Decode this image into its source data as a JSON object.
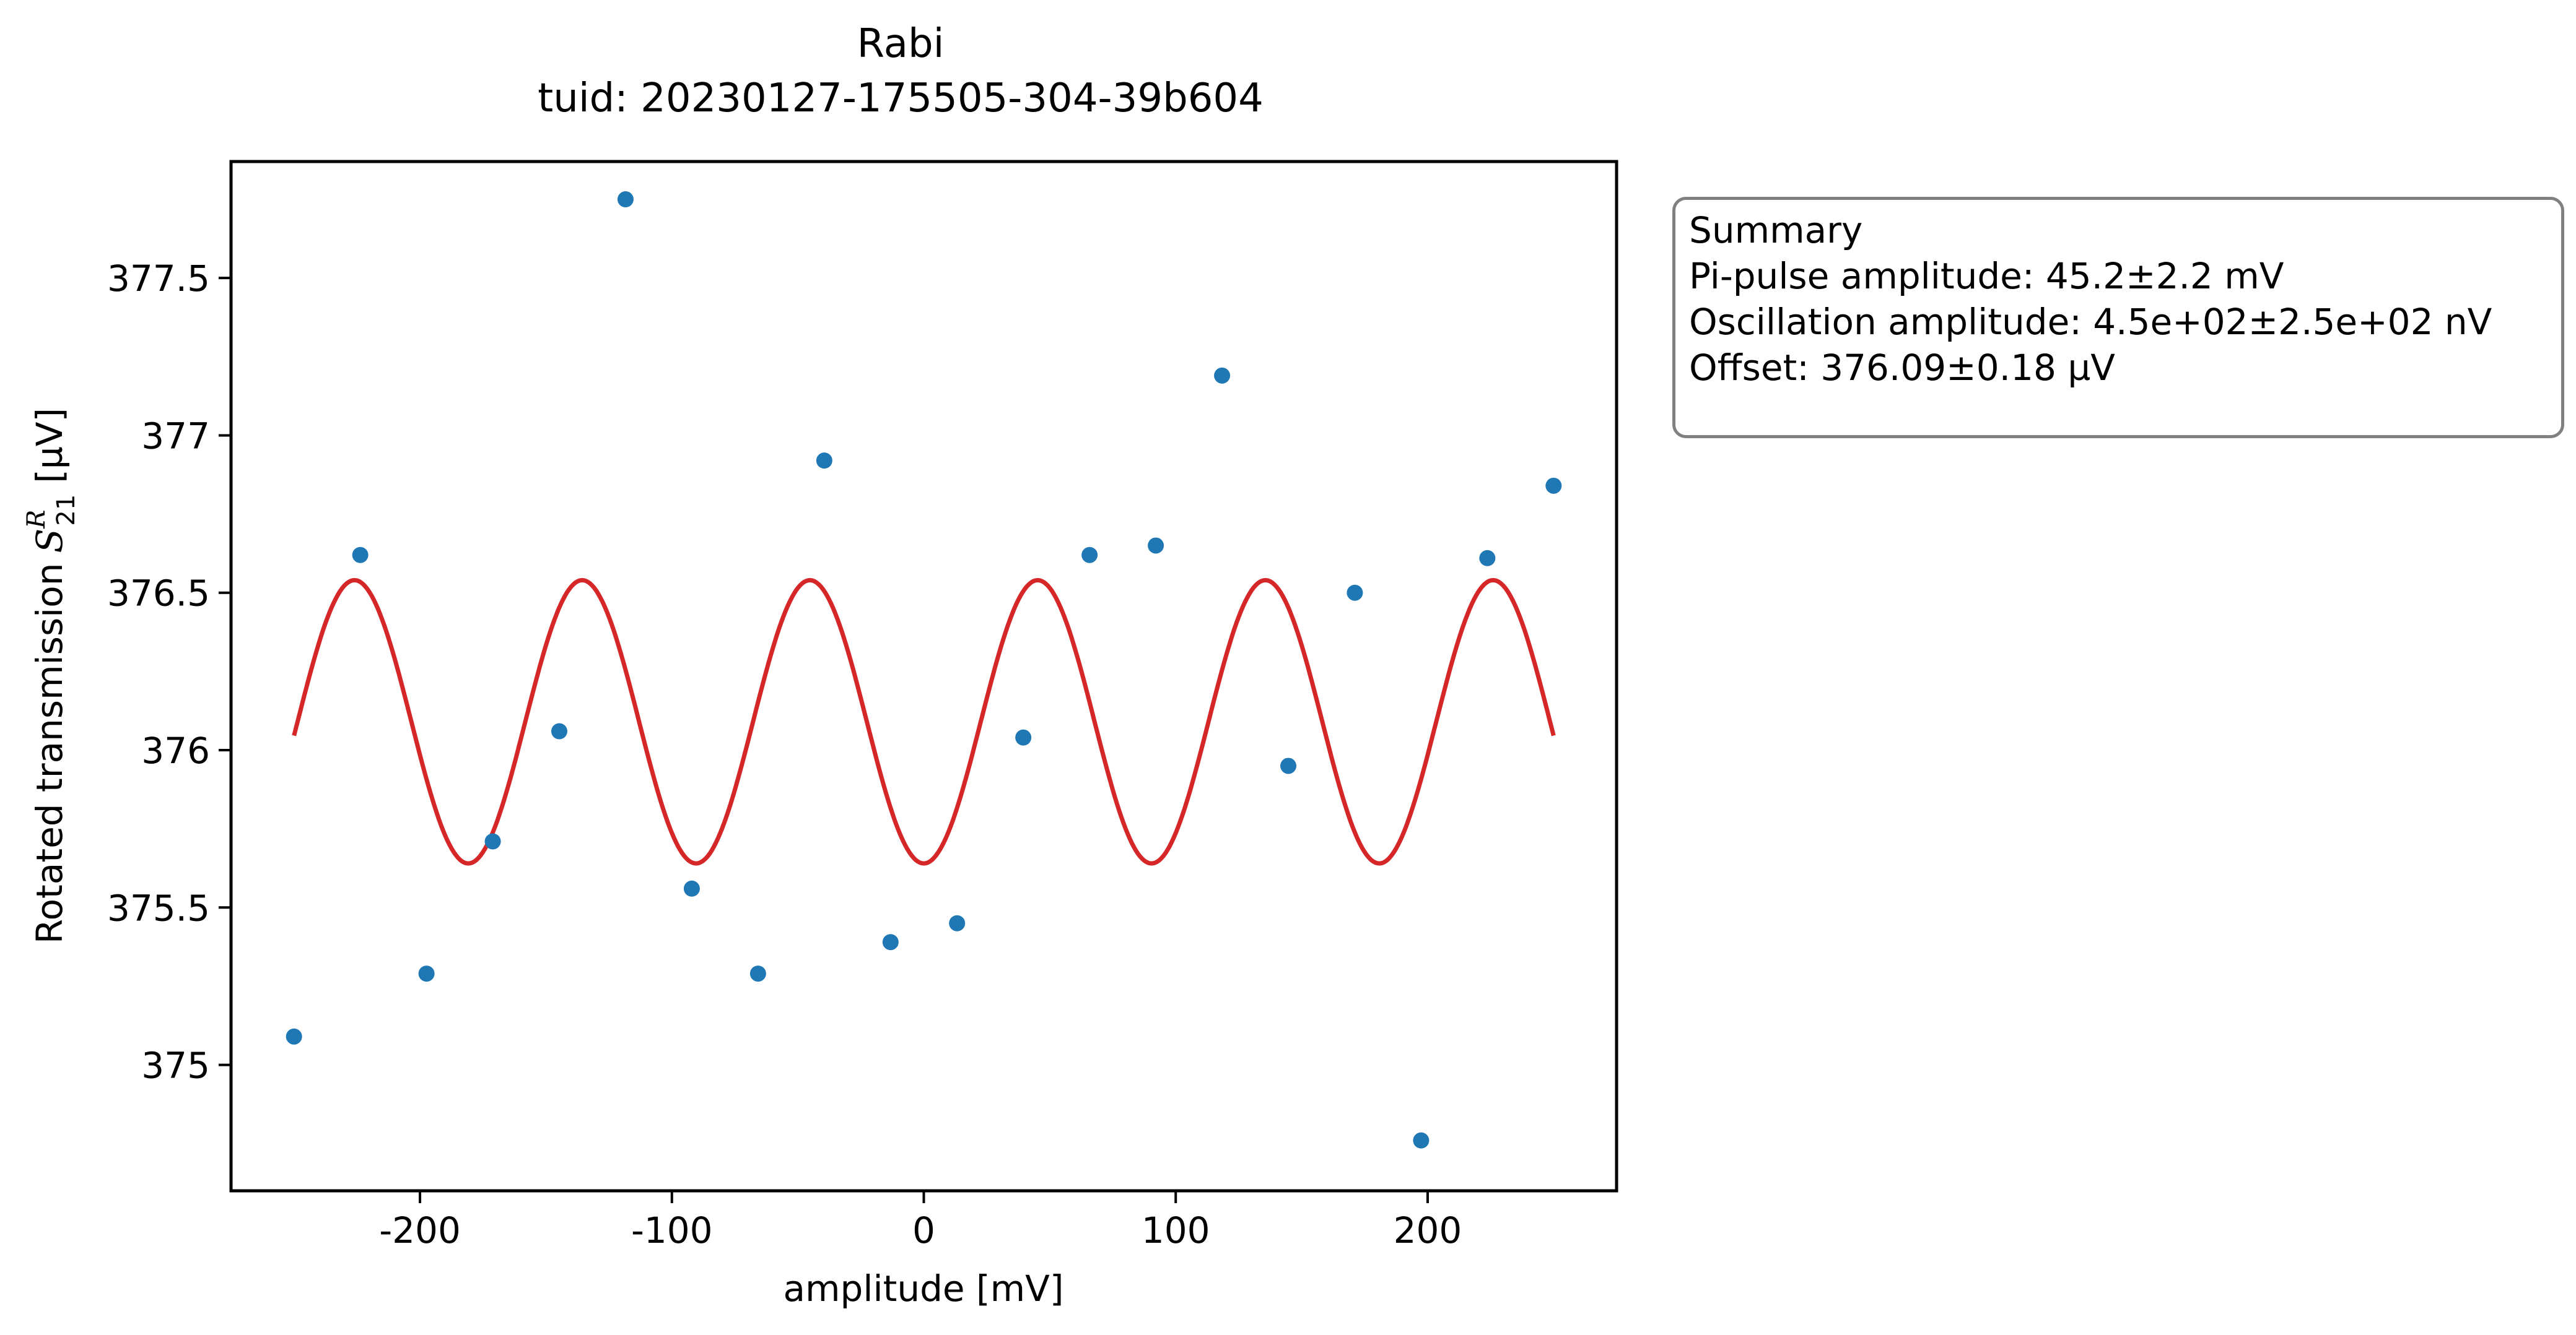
{
  "chart_data": {
    "type": "scatter",
    "title": "Rabi",
    "subtitle": "tuid: 20230127-175505-304-39b604",
    "xlabel": "amplitude [mV]",
    "ylabel": "Rotated transmission",
    "ylabel_symbol": "S",
    "ylabel_superscript": "R",
    "ylabel_subscript": "21",
    "ylabel_unit": "[µV]",
    "xlim": [
      -275,
      275
    ],
    "ylim": [
      374.6,
      377.87
    ],
    "x_ticks": [
      -200,
      -100,
      0,
      100,
      200
    ],
    "x_tick_labels": [
      "-200",
      "-100",
      "0",
      "100",
      "200"
    ],
    "y_ticks": [
      375,
      375.5,
      376,
      376.5,
      377,
      377.5
    ],
    "y_tick_labels": [
      "375",
      "375.5",
      "376",
      "376.5",
      "377",
      "377.5"
    ],
    "grid": false,
    "series": [
      {
        "kind": "points",
        "color": "#1f77b4",
        "x": [
          -250,
          -223.7,
          -197.4,
          -171.1,
          -144.7,
          -118.4,
          -92.1,
          -65.8,
          -39.5,
          -13.2,
          13.2,
          39.5,
          65.8,
          92.1,
          118.4,
          144.7,
          171.1,
          197.4,
          223.7,
          250
        ],
        "y": [
          375.09,
          376.62,
          375.29,
          375.71,
          376.06,
          377.75,
          375.56,
          375.29,
          376.92,
          375.39,
          375.45,
          376.04,
          376.62,
          376.65,
          377.19,
          375.95,
          376.5,
          374.76,
          376.61,
          376.84
        ]
      },
      {
        "kind": "fit",
        "color": "#d62728",
        "x_range": [
          -250,
          250
        ],
        "pi_pulse_amplitude_mV": 45.2,
        "oscillation_amplitude_uV": 0.45,
        "offset_uV": 376.09
      }
    ],
    "summary": {
      "heading": "Summary",
      "lines": [
        "Pi-pulse amplitude: 45.2±2.2 mV",
        "Oscillation amplitude: 4.5e+02±2.5e+02 nV",
        "Offset: 376.09±0.18 µV"
      ]
    }
  }
}
